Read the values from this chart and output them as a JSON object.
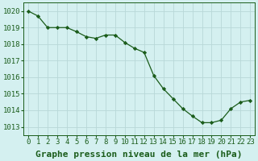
{
  "x": [
    0,
    1,
    2,
    3,
    4,
    5,
    6,
    7,
    8,
    9,
    10,
    11,
    12,
    13,
    14,
    15,
    16,
    17,
    18,
    19,
    20,
    21,
    22,
    23
  ],
  "y": [
    1020.0,
    1019.7,
    1019.0,
    1019.0,
    1019.0,
    1018.75,
    1018.45,
    1018.35,
    1018.55,
    1018.55,
    1018.1,
    1017.75,
    1017.5,
    1016.1,
    1015.3,
    1014.7,
    1014.1,
    1013.65,
    1013.25,
    1013.25,
    1013.4,
    1014.1,
    1014.5,
    1014.6
  ],
  "line_color": "#1a5c1a",
  "marker": "D",
  "marker_size": 2.2,
  "background_color": "#d4f0f0",
  "grid_color": "#b8d8d8",
  "xlabel": "Graphe pression niveau de la mer (hPa)",
  "ylim": [
    1012.5,
    1020.5
  ],
  "yticks": [
    1013,
    1014,
    1015,
    1016,
    1017,
    1018,
    1019,
    1020
  ],
  "xticks": [
    0,
    1,
    2,
    3,
    4,
    5,
    6,
    7,
    8,
    9,
    10,
    11,
    12,
    13,
    14,
    15,
    16,
    17,
    18,
    19,
    20,
    21,
    22,
    23
  ],
  "tick_label_fontsize": 6.5,
  "xlabel_fontsize": 8.0,
  "tick_color": "#1a5c1a",
  "axis_color": "#1a5c1a"
}
